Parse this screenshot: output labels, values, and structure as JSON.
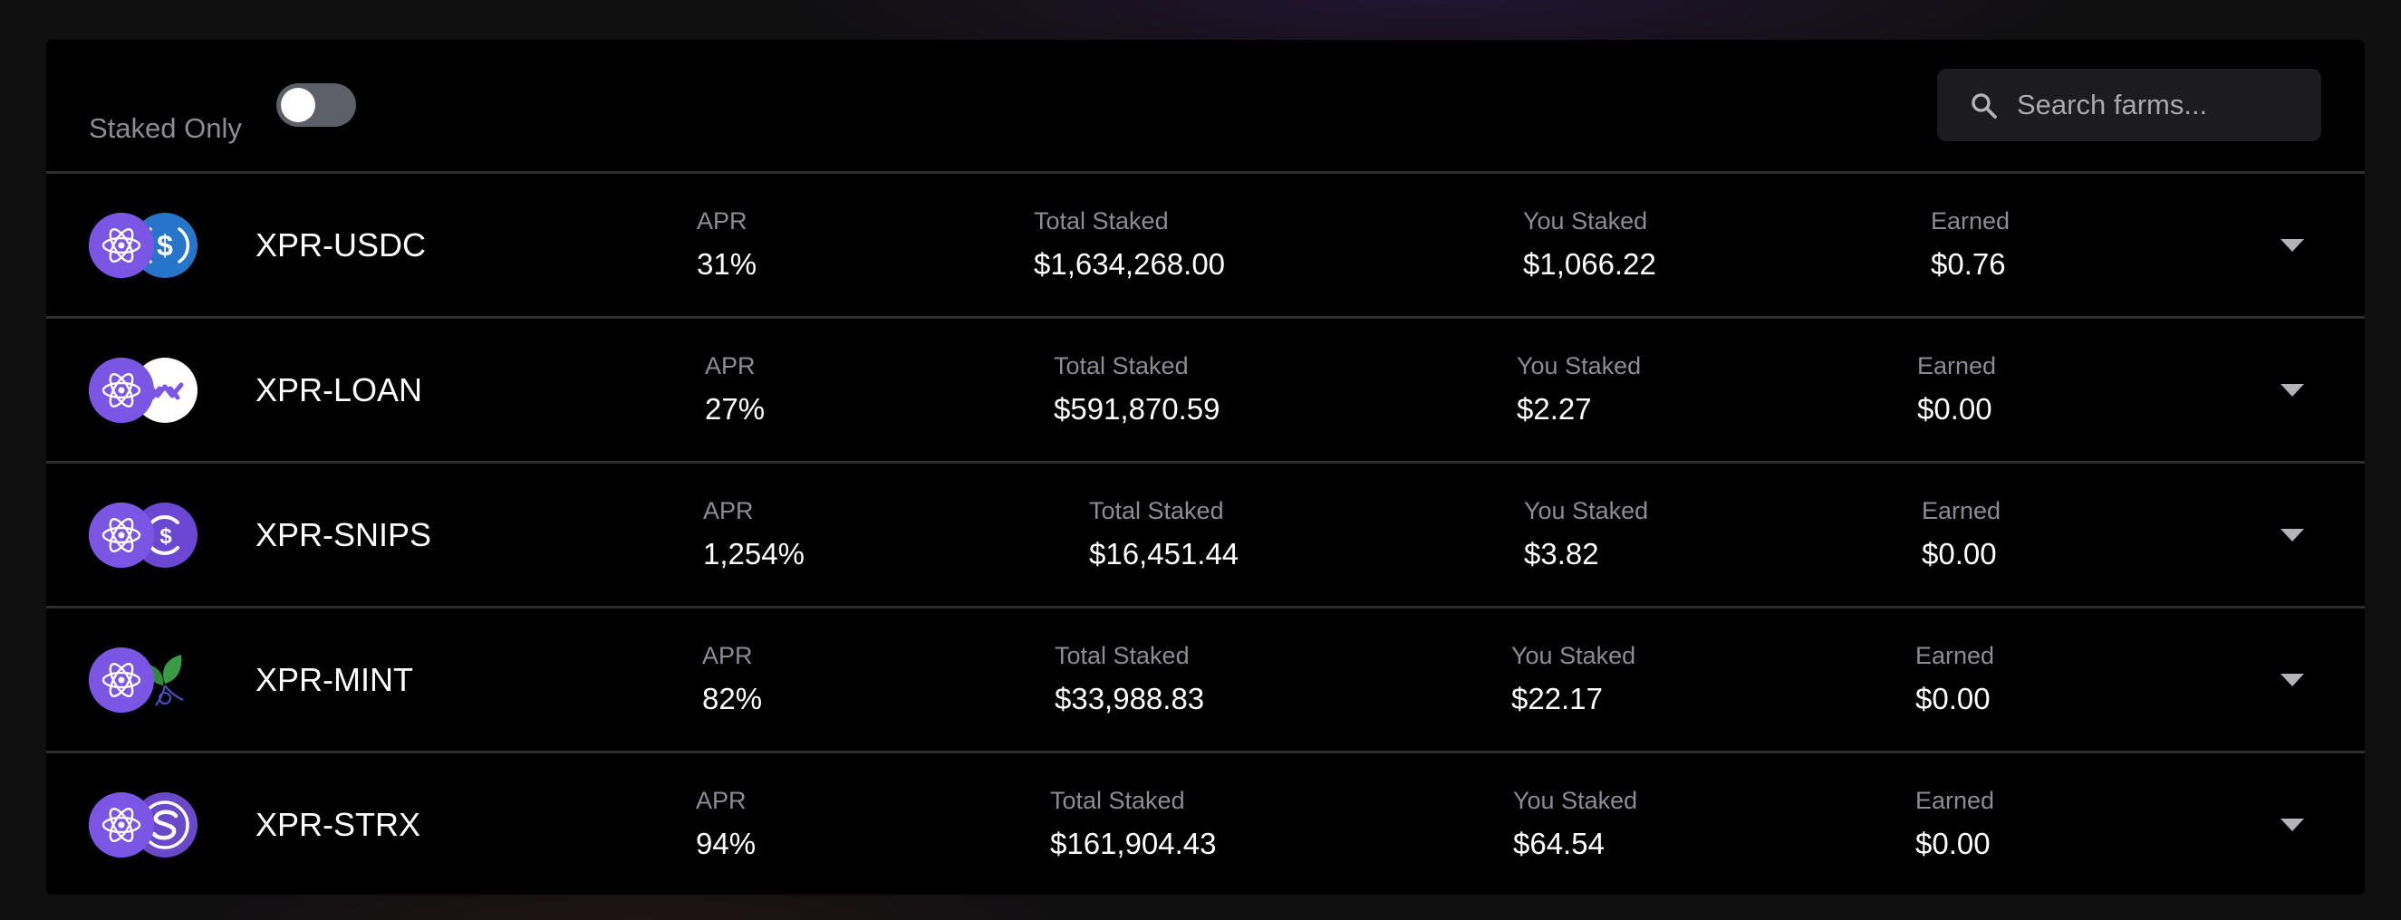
{
  "toolbar": {
    "staked_only_label": "Staked Only",
    "staked_only_enabled": false,
    "search_placeholder": "Search farms...",
    "search_value": ""
  },
  "labels": {
    "apr": "APR",
    "total_staked": "Total Staked",
    "you_staked": "You Staked",
    "earned": "Earned"
  },
  "farms": [
    {
      "name": "XPR-USDC",
      "apr": "31%",
      "total_staked": "$1,634,268.00",
      "you_staked": "$1,066.22",
      "earned": "$0.76",
      "base_icon": "xpr-atom-icon",
      "quote_icon": "usdc-icon"
    },
    {
      "name": "XPR-LOAN",
      "apr": "27%",
      "total_staked": "$591,870.59",
      "you_staked": "$2.27",
      "earned": "$0.00",
      "base_icon": "xpr-atom-icon",
      "quote_icon": "loan-icon"
    },
    {
      "name": "XPR-SNIPS",
      "apr": "1,254%",
      "total_staked": "$16,451.44",
      "you_staked": "$3.82",
      "earned": "$0.00",
      "base_icon": "xpr-atom-icon",
      "quote_icon": "snips-icon"
    },
    {
      "name": "XPR-MINT",
      "apr": "82%",
      "total_staked": "$33,988.83",
      "you_staked": "$22.17",
      "earned": "$0.00",
      "base_icon": "xpr-atom-icon",
      "quote_icon": "mint-leaf-icon"
    },
    {
      "name": "XPR-STRX",
      "apr": "94%",
      "total_staked": "$161,904.43",
      "you_staked": "$64.54",
      "earned": "$0.00",
      "base_icon": "xpr-atom-icon",
      "quote_icon": "strx-icon"
    }
  ],
  "colors": {
    "xpr_purple": "#7b55e3",
    "usdc_blue": "#2775ca",
    "label_gray": "#8c8c95",
    "panel": "#000000"
  }
}
